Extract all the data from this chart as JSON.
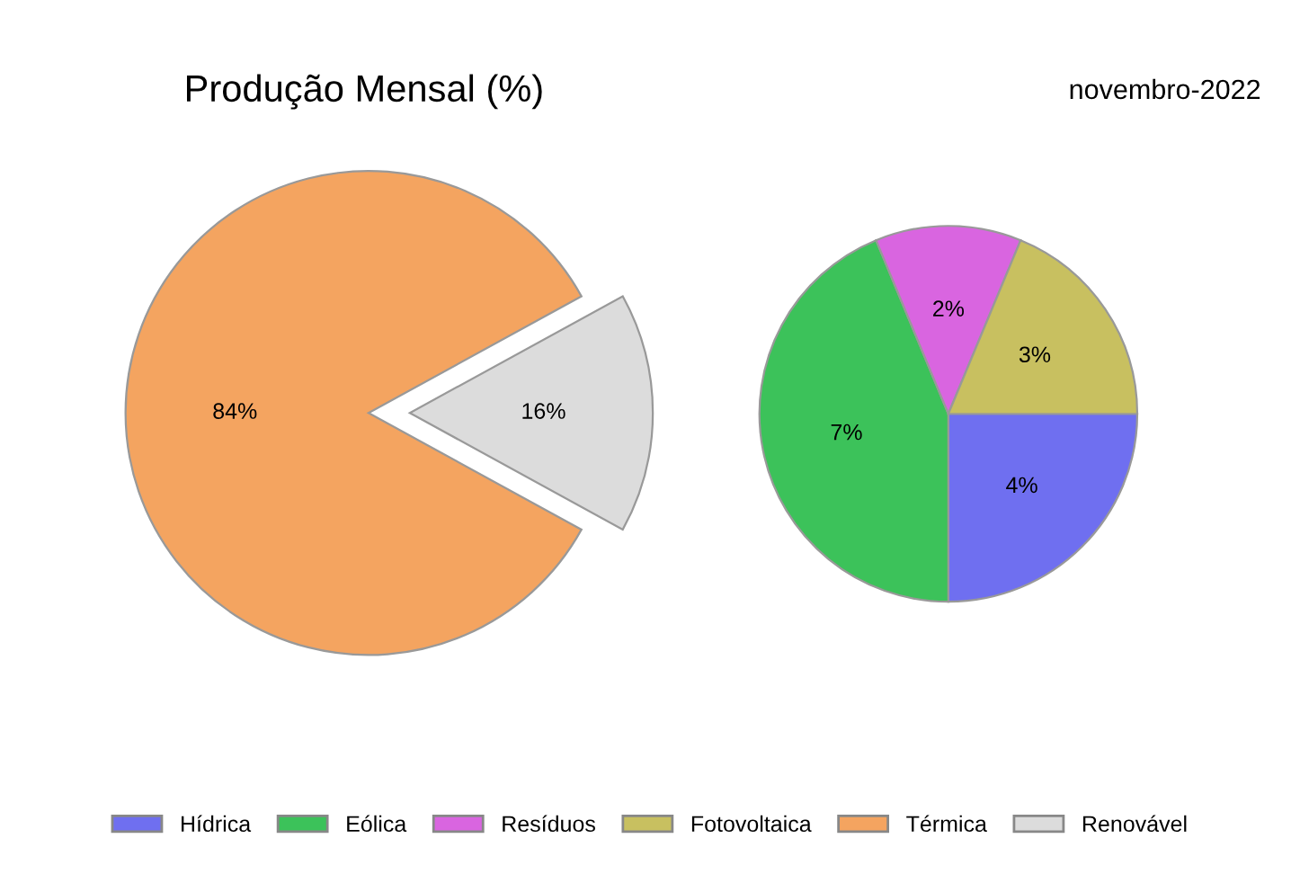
{
  "chart_data": [
    {
      "type": "pie",
      "title": "Produção Mensal (%)",
      "categories": [
        "Térmica",
        "Renovável"
      ],
      "values": [
        84,
        16
      ],
      "value_labels": [
        "84%",
        "16%"
      ],
      "colors": [
        "#f4a460",
        "#dcdcdc"
      ],
      "legend": "bottom"
    },
    {
      "type": "pie",
      "title": "novembro-2022",
      "categories": [
        "Hídrica",
        "Eólica",
        "Resíduos",
        "Fotovoltaica"
      ],
      "values": [
        4,
        7,
        2,
        3
      ],
      "value_labels": [
        "4%",
        "7%",
        "2%",
        "3%"
      ],
      "colors": [
        "#6f6ff0",
        "#3cc25a",
        "#d965e0",
        "#c8c060"
      ],
      "legend": "bottom"
    }
  ]
}
